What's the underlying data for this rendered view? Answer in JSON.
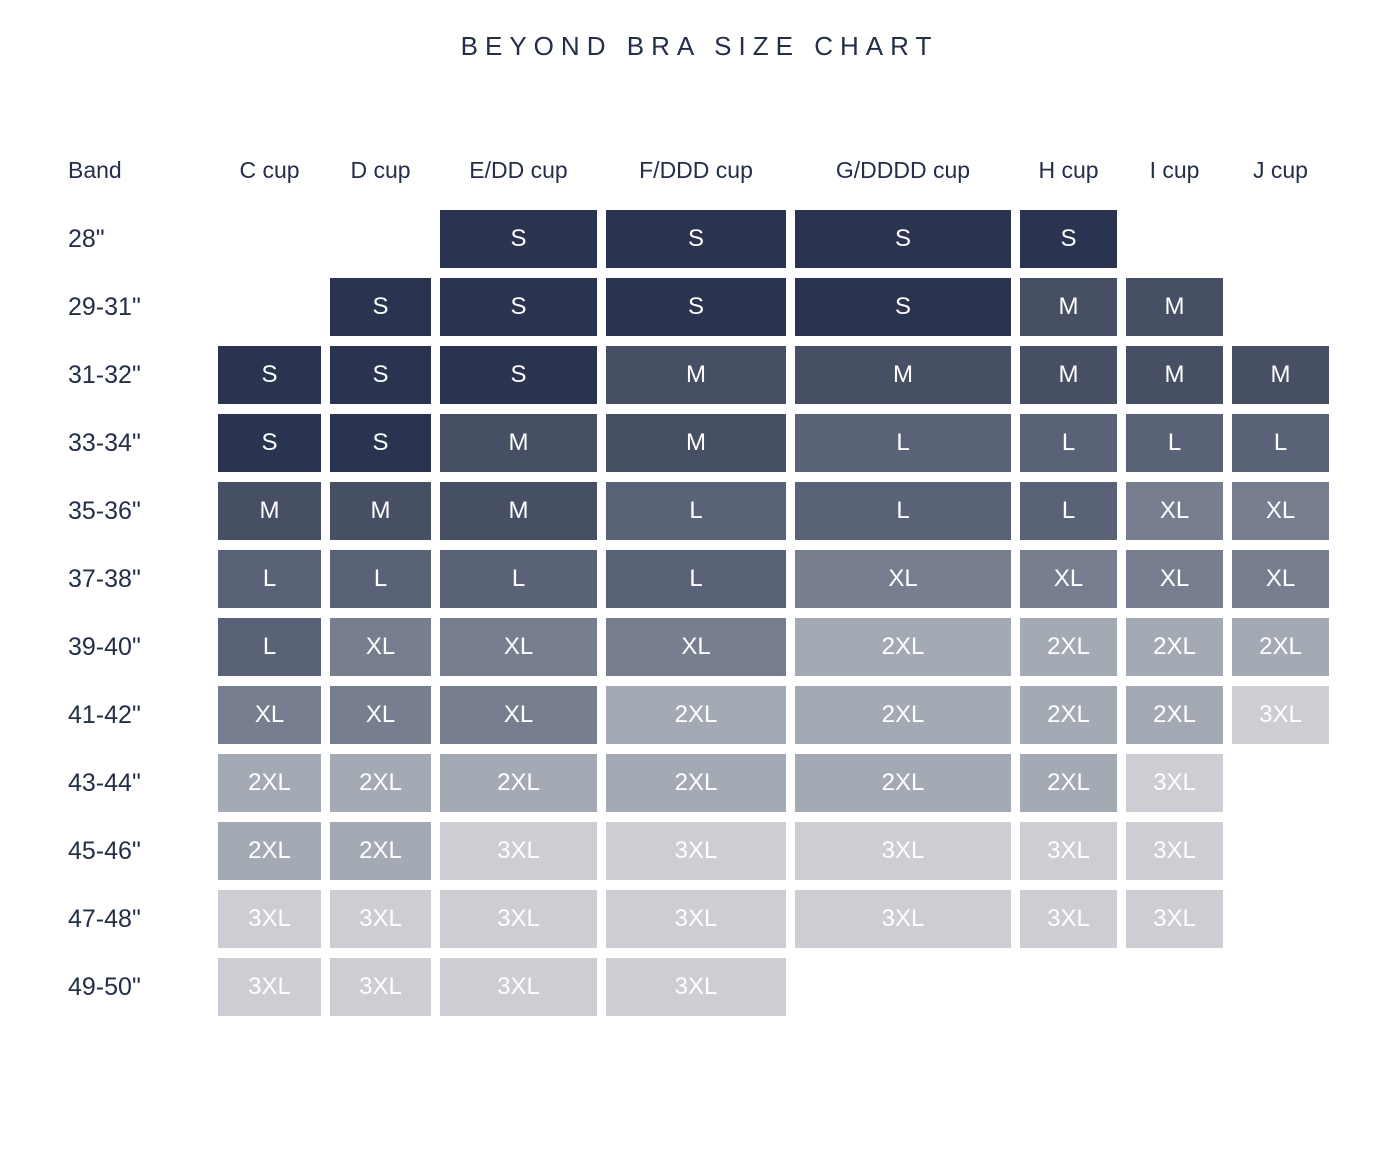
{
  "title": "BEYOND BRA SIZE CHART",
  "chart_data": {
    "type": "heatmap",
    "title": "BEYOND BRA SIZE CHART",
    "row_header": "Band",
    "columns": [
      "C cup",
      "D cup",
      "E/DD cup",
      "F/DDD cup",
      "G/DDDD cup",
      "H cup",
      "I cup",
      "J cup"
    ],
    "rows": [
      "28\"",
      "29-31\"",
      "31-32\"",
      "33-34\"",
      "35-36\"",
      "37-38\"",
      "39-40\"",
      "41-42\"",
      "43-44\"",
      "45-46\"",
      "47-48\"",
      "49-50\""
    ],
    "values": [
      [
        null,
        null,
        "S",
        "S",
        "S",
        "S",
        null,
        null
      ],
      [
        null,
        "S",
        "S",
        "S",
        "S",
        "M",
        "M",
        null
      ],
      [
        "S",
        "S",
        "S",
        "M",
        "M",
        "M",
        "M",
        "M"
      ],
      [
        "S",
        "S",
        "M",
        "M",
        "L",
        "L",
        "L",
        "L"
      ],
      [
        "M",
        "M",
        "M",
        "L",
        "L",
        "L",
        "XL",
        "XL"
      ],
      [
        "L",
        "L",
        "L",
        "L",
        "XL",
        "XL",
        "XL",
        "XL"
      ],
      [
        "L",
        "XL",
        "XL",
        "XL",
        "2XL",
        "2XL",
        "2XL",
        "2XL"
      ],
      [
        "XL",
        "XL",
        "XL",
        "2XL",
        "2XL",
        "2XL",
        "2XL",
        "3XL"
      ],
      [
        "2XL",
        "2XL",
        "2XL",
        "2XL",
        "2XL",
        "2XL",
        "3XL",
        null
      ],
      [
        "2XL",
        "2XL",
        "3XL",
        "3XL",
        "3XL",
        "3XL",
        "3XL",
        null
      ],
      [
        "3XL",
        "3XL",
        "3XL",
        "3XL",
        "3XL",
        "3XL",
        "3XL",
        null
      ],
      [
        "3XL",
        "3XL",
        "3XL",
        "3XL",
        null,
        null,
        null,
        null
      ]
    ],
    "color_map": {
      "S": "#2A3450",
      "M": "#474F64",
      "L": "#5A6278",
      "XL": "#767E90",
      "2XL": "#A4AAB4",
      "3XL": "#CCCED4"
    },
    "cell_text_color": "#FFFFFF",
    "heading_color": "#242E48",
    "background_color": "#FFFFFF",
    "grid": "off",
    "legend": "none"
  }
}
